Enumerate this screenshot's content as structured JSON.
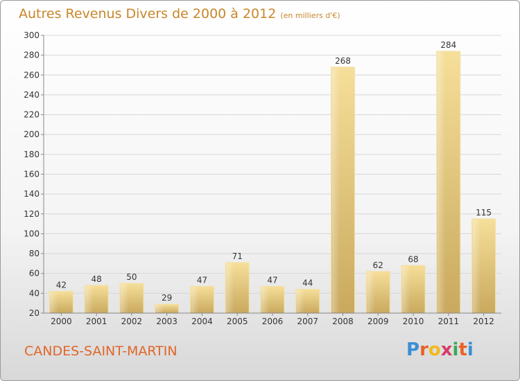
{
  "chart_data": {
    "type": "bar",
    "title": "Autres Revenus Divers de 2000 à 2012",
    "subtitle": "(en milliers d'€)",
    "categories": [
      "2000",
      "2001",
      "2002",
      "2003",
      "2004",
      "2005",
      "2006",
      "2007",
      "2008",
      "2009",
      "2010",
      "2011",
      "2012"
    ],
    "values": [
      42,
      48,
      50,
      29,
      47,
      71,
      47,
      44,
      268,
      62,
      68,
      284,
      115
    ],
    "ylim": [
      20,
      300
    ],
    "yticks": [
      20,
      40,
      60,
      80,
      100,
      120,
      140,
      160,
      180,
      200,
      220,
      240,
      260,
      280,
      300
    ],
    "grid": true,
    "bar_color": "#e9cc84",
    "label_color": "#333333"
  },
  "footer": {
    "commune": "CANDES-SAINT-MARTIN",
    "logo": "Proxiti"
  }
}
